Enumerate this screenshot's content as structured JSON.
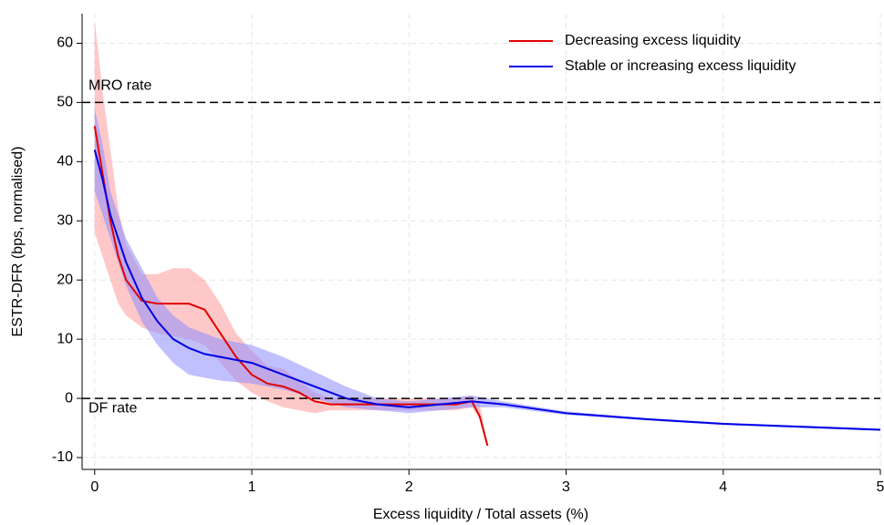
{
  "chart_data": {
    "type": "line",
    "x_label": "Excess liquidity / Total assets (%)",
    "y_label": "ESTR-DFR (bps, normalised)",
    "xlim": [
      -0.08,
      5
    ],
    "ylim": [
      -12,
      65
    ],
    "xticks": [
      0,
      1,
      2,
      3,
      4,
      5
    ],
    "yticks": [
      -10,
      0,
      10,
      20,
      30,
      40,
      50,
      60
    ],
    "grid": true,
    "legend": "top-right",
    "reference_lines": [
      {
        "value": 50,
        "label": "MRO rate"
      },
      {
        "value": 0,
        "label": "DF rate"
      }
    ],
    "series": [
      {
        "name": "Decreasing excess liquidity",
        "color": "#e00000",
        "band_color": "#ff9a9a",
        "x": [
          0,
          0.05,
          0.1,
          0.15,
          0.2,
          0.3,
          0.4,
          0.5,
          0.6,
          0.7,
          0.8,
          0.9,
          1.0,
          1.1,
          1.2,
          1.3,
          1.4,
          1.5,
          1.7,
          1.9,
          2.1,
          2.3,
          2.4,
          2.45,
          2.5
        ],
        "values": [
          46,
          38,
          30,
          24,
          20,
          16.5,
          16,
          16,
          16,
          15,
          11,
          7,
          4,
          2.5,
          2,
          1,
          -0.5,
          -1,
          -1,
          -1,
          -1,
          -1,
          -0.5,
          -3,
          -8
        ],
        "ci_lower": [
          28,
          24,
          20,
          16,
          14,
          12,
          11,
          10.5,
          10,
          9,
          6,
          3,
          1,
          -0.5,
          -1.5,
          -2,
          -2.5,
          -2,
          -2,
          -2,
          -2,
          -2,
          -1.5,
          -3.5,
          -8
        ],
        "ci_upper": [
          64,
          52,
          42,
          32,
          26,
          21,
          21,
          22,
          22,
          20,
          16,
          11,
          8,
          5.5,
          5,
          3,
          1,
          0,
          0,
          0,
          0,
          0,
          0.5,
          -1,
          -7.5
        ]
      },
      {
        "name": "Stable or increasing excess liquidity",
        "color": "#0000e6",
        "band_color": "#8c8cff",
        "x": [
          0,
          0.05,
          0.1,
          0.2,
          0.3,
          0.4,
          0.5,
          0.6,
          0.7,
          0.8,
          1.0,
          1.2,
          1.4,
          1.6,
          1.8,
          2.0,
          2.2,
          2.4,
          2.6,
          3.0,
          3.5,
          4.0,
          4.5,
          5.0
        ],
        "values": [
          42,
          37,
          31,
          23,
          17,
          13,
          10,
          8.5,
          7.5,
          7,
          6,
          4,
          2,
          0,
          -1,
          -1.5,
          -1,
          -0.5,
          -1,
          -2.5,
          -3.5,
          -4.3,
          -4.8,
          -5.3
        ],
        "ci_lower": [
          35,
          31,
          27,
          19,
          13,
          9,
          6,
          4,
          3.5,
          3,
          2.5,
          1.5,
          0,
          -1.5,
          -2,
          -2.5,
          -2,
          -1.5,
          -1.5,
          -2.8,
          -3.7,
          -4.5,
          -5,
          -5.5
        ],
        "ci_upper": [
          49,
          43,
          35,
          27,
          22,
          17,
          14,
          12,
          11,
          10,
          9,
          7,
          4.5,
          2,
          0,
          -0.5,
          0,
          0.5,
          -0.5,
          -2.2,
          -3.3,
          -4.1,
          -4.6,
          -5.1
        ]
      }
    ]
  }
}
